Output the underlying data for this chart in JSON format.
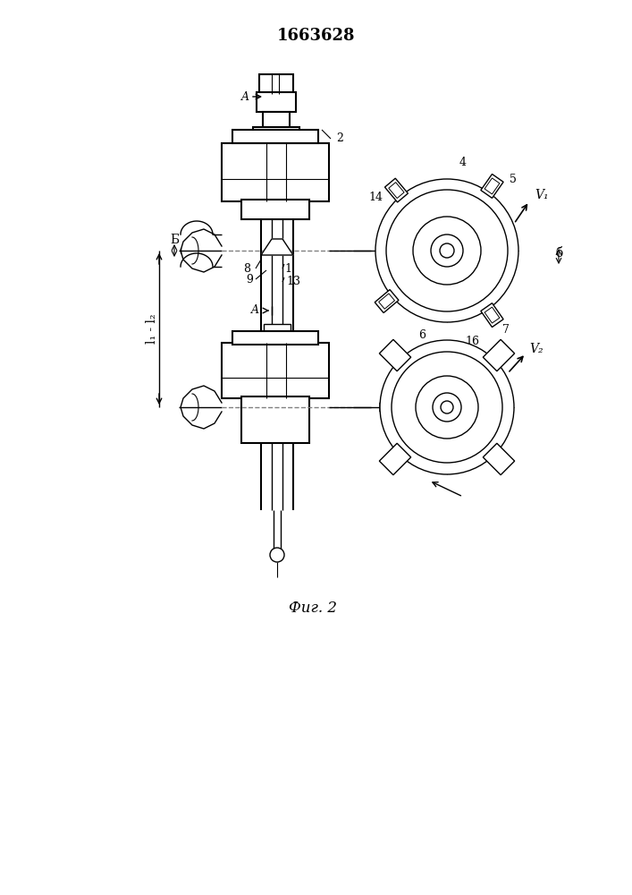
{
  "title": "1663628",
  "caption": "Фиг. 2",
  "bg_color": "#ffffff",
  "line_color": "#000000",
  "labels": {
    "A_top": "A",
    "A_mid": "A",
    "num1": "1",
    "num2": "2",
    "num4": "4",
    "num5": "5",
    "num6": "6",
    "num7": "7",
    "num8": "8",
    "num9": "9",
    "num13": "13",
    "num14": "14",
    "num16": "16",
    "B_left": "Б",
    "B_right": "б",
    "V1": "V₁",
    "V2": "V₂",
    "L": "l₁ - l₂"
  }
}
